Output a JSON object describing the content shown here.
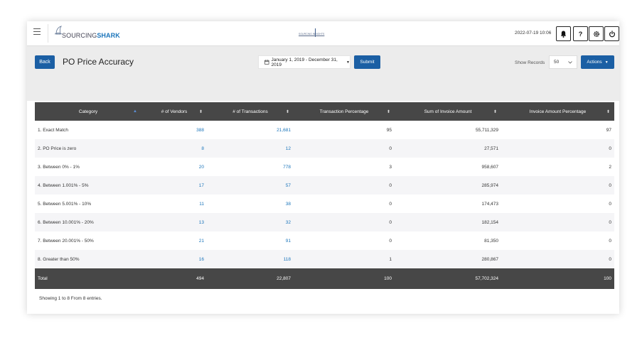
{
  "header": {
    "logo": {
      "prefix": "SOURCING",
      "suffix": "SHARK"
    },
    "center_logo_text": "SOURCING INSIGHTS",
    "datetime": "2022-07-19 10:06",
    "buttons": [
      {
        "name": "notifications",
        "icon": "bell-icon"
      },
      {
        "name": "help",
        "label": "?",
        "icon": "question-icon"
      },
      {
        "name": "settings",
        "icon": "gear-icon"
      },
      {
        "name": "power",
        "icon": "power-icon"
      }
    ]
  },
  "toolbar": {
    "back_label": "Back",
    "page_title": "PO Price Accuracy",
    "date_range": "January 1, 2019 - December 31, 2019",
    "submit_label": "Submit",
    "show_records_label": "Show Records",
    "show_records_value": "50",
    "actions_label": "Actions"
  },
  "table": {
    "columns": [
      "Category",
      "# of Vendors",
      "# of Transactions",
      "Transaction Percentage",
      "Sum of Invoice Amount",
      "Invoice Amount Percentage"
    ],
    "rows": [
      {
        "category": "1. Exact Match",
        "vendors": "388",
        "transactions": "21,681",
        "txn_pct": "95",
        "invoice_sum": "55,711,329",
        "invoice_pct": "97"
      },
      {
        "category": "2. PO Price is zero",
        "vendors": "8",
        "transactions": "12",
        "txn_pct": "0",
        "invoice_sum": "27,571",
        "invoice_pct": "0"
      },
      {
        "category": "3. Between 0% - 1%",
        "vendors": "20",
        "transactions": "778",
        "txn_pct": "3",
        "invoice_sum": "958,607",
        "invoice_pct": "2"
      },
      {
        "category": "4. Between 1.001% - 5%",
        "vendors": "17",
        "transactions": "57",
        "txn_pct": "0",
        "invoice_sum": "285,974",
        "invoice_pct": "0"
      },
      {
        "category": "5. Between 5.001% - 10%",
        "vendors": "11",
        "transactions": "38",
        "txn_pct": "0",
        "invoice_sum": "174,473",
        "invoice_pct": "0"
      },
      {
        "category": "6. Between 10.001% - 20%",
        "vendors": "13",
        "transactions": "32",
        "txn_pct": "0",
        "invoice_sum": "182,154",
        "invoice_pct": "0"
      },
      {
        "category": "7. Between 20.001% - 50%",
        "vendors": "21",
        "transactions": "91",
        "txn_pct": "0",
        "invoice_sum": "81,350",
        "invoice_pct": "0"
      },
      {
        "category": "8. Greater than 50%",
        "vendors": "16",
        "transactions": "118",
        "txn_pct": "1",
        "invoice_sum": "280,867",
        "invoice_pct": "0"
      }
    ],
    "total": {
      "label": "Total",
      "vendors": "494",
      "transactions": "22,807",
      "txn_pct": "100",
      "invoice_sum": "57,702,324",
      "invoice_pct": "100"
    }
  },
  "footer": {
    "entries_text": "Showing 1 to 8 From 8 entries."
  },
  "colors": {
    "primary": "#1b5fa4",
    "link": "#1b75bb",
    "table_header": "#474747",
    "toolbar_bg": "#ececec"
  }
}
